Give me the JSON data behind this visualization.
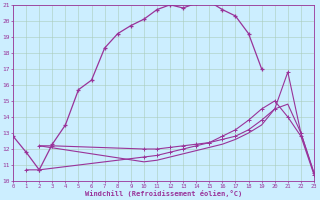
{
  "xlabel": "Windchill (Refroidissement éolien,°C)",
  "background_color": "#cceeff",
  "grid_color": "#aaccbb",
  "line_color": "#993399",
  "xmin": 0,
  "xmax": 23,
  "ymin": 10,
  "ymax": 21,
  "yticks": [
    10,
    11,
    12,
    13,
    14,
    15,
    16,
    17,
    18,
    19,
    20,
    21
  ],
  "xticks": [
    0,
    1,
    2,
    3,
    4,
    5,
    6,
    7,
    8,
    9,
    10,
    11,
    12,
    13,
    14,
    15,
    16,
    17,
    18,
    19,
    20,
    21,
    22,
    23
  ],
  "curve1_x": [
    0,
    1,
    2,
    3,
    4,
    5,
    6,
    7,
    8,
    9,
    10,
    11,
    12,
    13,
    14,
    15,
    16,
    17,
    18,
    19
  ],
  "curve1_y": [
    12.8,
    11.8,
    10.7,
    12.3,
    13.5,
    15.7,
    16.3,
    18.3,
    19.2,
    19.7,
    20.1,
    20.7,
    21.0,
    20.8,
    21.1,
    21.2,
    20.7,
    20.3,
    19.2,
    17.0
  ],
  "curve2_x": [
    2,
    3,
    10,
    11,
    12,
    13,
    14,
    15,
    16,
    17,
    18,
    19,
    20,
    21,
    22,
    23
  ],
  "curve2_y": [
    12.2,
    12.2,
    12.0,
    12.0,
    12.1,
    12.2,
    12.3,
    12.4,
    12.6,
    12.8,
    13.2,
    13.8,
    14.5,
    16.8,
    13.0,
    10.5
  ],
  "curve3_x": [
    2,
    10,
    11,
    12,
    13,
    14,
    15,
    16,
    17,
    18,
    19,
    20,
    21,
    22,
    23
  ],
  "curve3_y": [
    12.2,
    11.2,
    11.3,
    11.5,
    11.7,
    11.9,
    12.1,
    12.3,
    12.6,
    13.0,
    13.5,
    14.5,
    14.8,
    13.0,
    10.5
  ],
  "curve4_x": [
    1,
    2,
    10,
    11,
    12,
    13,
    14,
    15,
    16,
    17,
    18,
    19,
    20,
    21,
    22,
    23
  ],
  "curve4_y": [
    10.7,
    10.7,
    11.5,
    11.6,
    11.8,
    12.0,
    12.2,
    12.4,
    12.8,
    13.2,
    13.8,
    14.5,
    15.0,
    14.0,
    12.8,
    10.4
  ]
}
